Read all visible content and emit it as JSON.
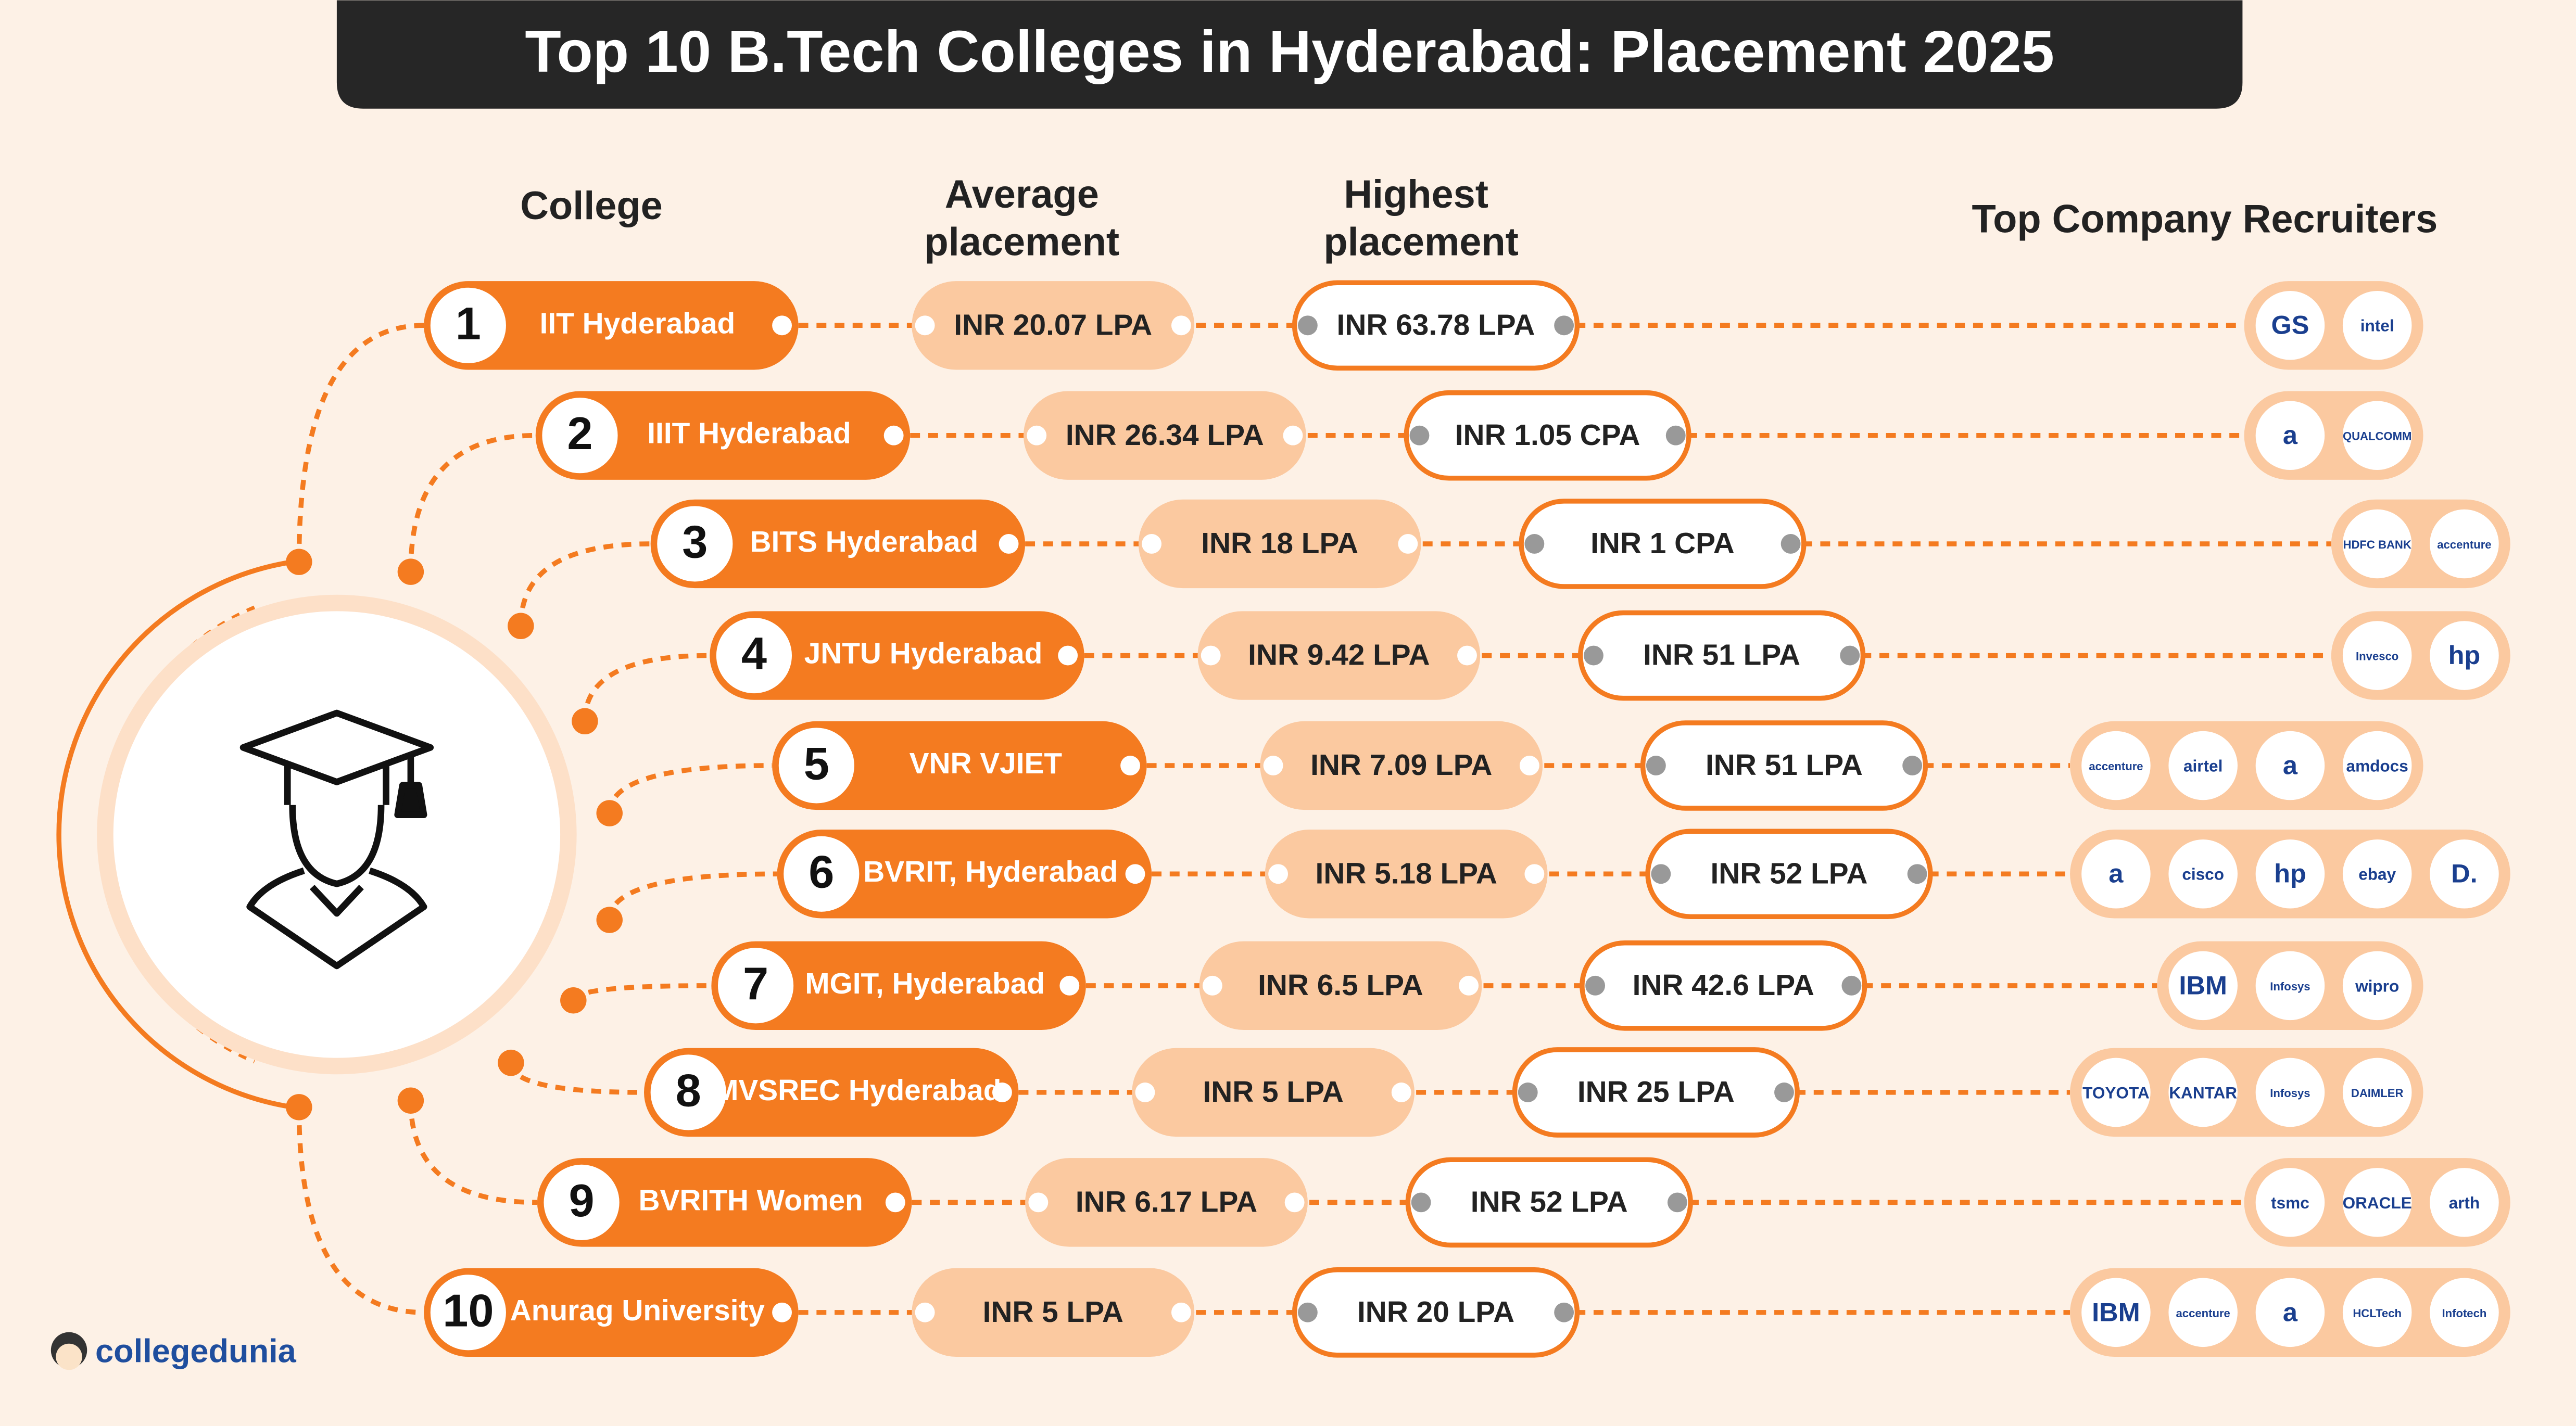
{
  "header": {
    "title": "Top 10  B.Tech Colleges in Hyderabad: Placement 2025"
  },
  "columns": {
    "college": [
      "College"
    ],
    "average": [
      "Average",
      "placement"
    ],
    "highest": [
      "Highest",
      "placement"
    ],
    "recruiters": [
      "Top Company Recruiters"
    ]
  },
  "rows": [
    {
      "rank": "1",
      "college": "IIT Hyderabad",
      "average": "INR 20.07 LPA",
      "highest": "INR 63.78 LPA",
      "recruiters": [
        "GS",
        "intel"
      ]
    },
    {
      "rank": "2",
      "college": "IIIT Hyderabad",
      "average": "INR 26.34 LPA",
      "highest": "INR 1.05 CPA",
      "recruiters": [
        "a",
        "QUALCOMM"
      ]
    },
    {
      "rank": "3",
      "college": "BITS Hyderabad",
      "average": "INR 18 LPA",
      "highest": "INR 1 CPA",
      "recruiters": [
        "HDFC BANK",
        "accenture"
      ]
    },
    {
      "rank": "4",
      "college": "JNTU Hyderabad",
      "average": "INR 9.42 LPA",
      "highest": "INR 51 LPA",
      "recruiters": [
        "Invesco",
        "hp"
      ]
    },
    {
      "rank": "5",
      "college": "VNR VJIET",
      "average": "INR 7.09 LPA",
      "highest": "INR 51 LPA",
      "recruiters": [
        "accenture",
        "airtel",
        "a",
        "amdocs"
      ]
    },
    {
      "rank": "6",
      "college": "BVRIT, Hyderabad",
      "average": "INR 5.18 LPA",
      "highest": "INR 52 LPA",
      "recruiters": [
        "a",
        "cisco",
        "hp",
        "ebay",
        "D."
      ]
    },
    {
      "rank": "7",
      "college": "MGIT, Hyderabad",
      "average": "INR 6.5 LPA",
      "highest": "INR 42.6 LPA",
      "recruiters": [
        "IBM",
        "Infosys",
        "wipro"
      ]
    },
    {
      "rank": "8",
      "college": "MVSREC Hyderabad",
      "average": "INR 5 LPA",
      "highest": "INR 25 LPA",
      "recruiters": [
        "TOYOTA",
        "KANTAR",
        "Infosys",
        "DAIMLER"
      ]
    },
    {
      "rank": "9",
      "college": "BVRITH Women",
      "average": "INR 6.17 LPA",
      "highest": "INR 52 LPA",
      "recruiters": [
        "tsmc",
        "ORACLE",
        "arth"
      ]
    },
    {
      "rank": "10",
      "college": "Anurag University",
      "average": "INR 5 LPA",
      "highest": "INR 20 LPA",
      "recruiters": [
        "IBM",
        "accenture",
        "a",
        "HCLTech",
        "Infotech"
      ]
    }
  ],
  "footer": {
    "brand": "collegedunia"
  }
}
